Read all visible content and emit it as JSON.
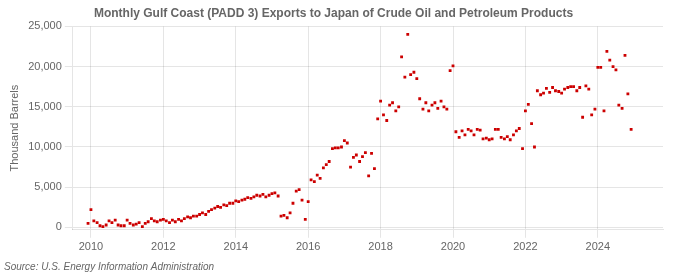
{
  "chart_data": {
    "type": "scatter",
    "title": "Monthly Gulf Coast (PADD 3) Exports to Japan of Crude Oil and Petroleum Products",
    "y_label": "Thousand Barrels",
    "annotations": [
      "Source: U.S. Energy Information Administration"
    ],
    "color": "#cc0000",
    "marker": "square",
    "grid": true,
    "xlim": [
      2009.5,
      2025.8
    ],
    "ylim": [
      -300,
      25000
    ],
    "xticks": [
      2010,
      2012,
      2014,
      2016,
      2018,
      2020,
      2022,
      2024
    ],
    "yticks": [
      0,
      {
        "value": 5000,
        "label": "5,000"
      },
      {
        "value": 10000,
        "label": "10,000"
      },
      {
        "value": 15000,
        "label": "15,000"
      },
      {
        "value": 20000,
        "label": "20,000"
      },
      {
        "value": 25000,
        "label": "25,000"
      }
    ],
    "x": [
      2009.92,
      2010.0,
      2010.08,
      2010.17,
      2010.25,
      2010.33,
      2010.42,
      2010.5,
      2010.58,
      2010.67,
      2010.75,
      2010.83,
      2010.92,
      2011.0,
      2011.08,
      2011.17,
      2011.25,
      2011.33,
      2011.42,
      2011.5,
      2011.58,
      2011.67,
      2011.75,
      2011.83,
      2011.92,
      2012.0,
      2012.08,
      2012.17,
      2012.25,
      2012.33,
      2012.42,
      2012.5,
      2012.58,
      2012.67,
      2012.75,
      2012.83,
      2012.92,
      2013.0,
      2013.08,
      2013.17,
      2013.25,
      2013.33,
      2013.42,
      2013.5,
      2013.58,
      2013.67,
      2013.75,
      2013.83,
      2013.92,
      2014.0,
      2014.08,
      2014.17,
      2014.25,
      2014.33,
      2014.42,
      2014.5,
      2014.58,
      2014.67,
      2014.75,
      2014.83,
      2014.92,
      2015.0,
      2015.08,
      2015.17,
      2015.25,
      2015.33,
      2015.42,
      2015.5,
      2015.58,
      2015.67,
      2015.75,
      2015.83,
      2015.92,
      2016.0,
      2016.08,
      2016.17,
      2016.25,
      2016.33,
      2016.42,
      2016.5,
      2016.58,
      2016.67,
      2016.75,
      2016.83,
      2016.92,
      2017.0,
      2017.08,
      2017.17,
      2017.25,
      2017.33,
      2017.42,
      2017.5,
      2017.58,
      2017.67,
      2017.75,
      2017.83,
      2017.92,
      2018.0,
      2018.08,
      2018.17,
      2018.25,
      2018.33,
      2018.42,
      2018.5,
      2018.58,
      2018.67,
      2018.75,
      2018.83,
      2018.92,
      2019.0,
      2019.08,
      2019.17,
      2019.25,
      2019.33,
      2019.42,
      2019.5,
      2019.58,
      2019.67,
      2019.75,
      2019.83,
      2019.92,
      2020.0,
      2020.08,
      2020.17,
      2020.25,
      2020.33,
      2020.42,
      2020.5,
      2020.58,
      2020.67,
      2020.75,
      2020.83,
      2020.92,
      2021.0,
      2021.08,
      2021.17,
      2021.25,
      2021.33,
      2021.42,
      2021.5,
      2021.58,
      2021.67,
      2021.75,
      2021.83,
      2021.92,
      2022.0,
      2022.08,
      2022.17,
      2022.25,
      2022.33,
      2022.42,
      2022.5,
      2022.58,
      2022.67,
      2022.75,
      2022.83,
      2022.92,
      2023.0,
      2023.08,
      2023.17,
      2023.25,
      2023.33,
      2023.42,
      2023.5,
      2023.58,
      2023.67,
      2023.75,
      2023.83,
      2023.92,
      2024.0,
      2024.08,
      2024.17,
      2024.25,
      2024.33,
      2024.42,
      2024.5,
      2024.58,
      2024.67,
      2024.75,
      2024.83,
      2024.92
    ],
    "values": [
      500,
      2200,
      800,
      600,
      200,
      100,
      300,
      800,
      600,
      900,
      300,
      200,
      200,
      900,
      500,
      300,
      400,
      600,
      100,
      500,
      700,
      1100,
      800,
      700,
      900,
      1000,
      800,
      600,
      900,
      700,
      1000,
      800,
      1100,
      1300,
      1200,
      1400,
      1400,
      1600,
      1800,
      1600,
      2000,
      2200,
      2400,
      2600,
      2500,
      2800,
      2700,
      3000,
      3000,
      3300,
      3200,
      3400,
      3500,
      3700,
      3600,
      3800,
      4000,
      3900,
      4100,
      3800,
      4000,
      4200,
      4300,
      3900,
      1400,
      1500,
      1200,
      1800,
      3000,
      4500,
      4700,
      3400,
      1000,
      3200,
      5900,
      5700,
      6500,
      6100,
      7400,
      7800,
      8200,
      9800,
      9900,
      9900,
      10000,
      10800,
      10500,
      7500,
      8700,
      9000,
      8200,
      8800,
      9300,
      6400,
      9200,
      7300,
      13500,
      15700,
      14000,
      13300,
      15200,
      15500,
      14500,
      15000,
      21200,
      18700,
      24000,
      19000,
      19300,
      18500,
      16000,
      14700,
      15500,
      14500,
      15200,
      15500,
      14800,
      15700,
      15000,
      14700,
      19500,
      20100,
      11900,
      11200,
      12000,
      11500,
      12200,
      12000,
      11500,
      12200,
      12100,
      11000,
      11100,
      10900,
      11000,
      12200,
      12200,
      11200,
      11000,
      11300,
      10900,
      11500,
      12000,
      12300,
      9800,
      14500,
      15300,
      12900,
      10000,
      17000,
      16500,
      16700,
      17300,
      16800,
      17400,
      17000,
      16900,
      16700,
      17200,
      17400,
      17500,
      17500,
      17000,
      17400,
      13700,
      17600,
      17200,
      14000,
      14700,
      19900,
      19900,
      14500,
      21900,
      20800,
      20000,
      19600,
      15200,
      14800,
      21400,
      16600,
      12200
    ]
  }
}
